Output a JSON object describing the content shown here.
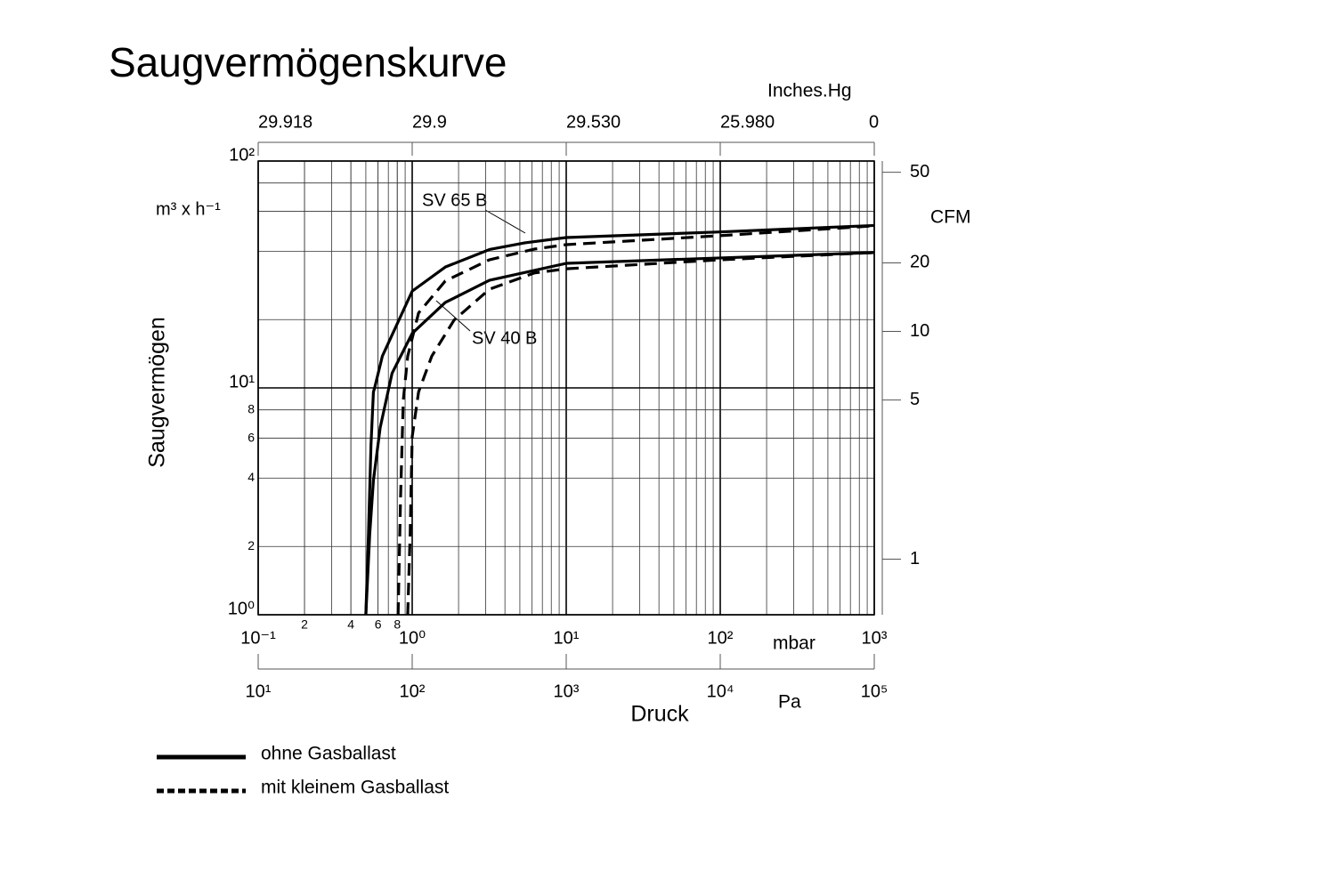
{
  "chart_data": {
    "type": "line",
    "title": "Saugvermögenskurve",
    "x_label": "Druck",
    "x_unit": "mbar",
    "y_label": "Saugvermögen",
    "y_unit": "m³ x h⁻¹",
    "xscale": "log",
    "yscale": "log",
    "xlim": [
      0.1,
      1000
    ],
    "ylim": [
      1,
      100
    ],
    "xticks": [
      {
        "value": 0.1,
        "label": "10⁻¹"
      },
      {
        "value": 0.2,
        "label": "2"
      },
      {
        "value": 0.4,
        "label": "4"
      },
      {
        "value": 0.6,
        "label": "6"
      },
      {
        "value": 0.8,
        "label": "8"
      },
      {
        "value": 1,
        "label": "10⁰"
      },
      {
        "value": 10,
        "label": "10¹"
      },
      {
        "value": 100,
        "label": "10²"
      },
      {
        "value": 1000,
        "label": "10³"
      }
    ],
    "yticks": [
      {
        "value": 1,
        "label": "10⁰"
      },
      2,
      4,
      6,
      8,
      {
        "value": 10,
        "label": "10¹"
      },
      {
        "value": 100,
        "label": "10²"
      }
    ],
    "y2_label": "CFM",
    "y2lim": [
      0.57,
      56
    ],
    "y2ticks": [
      1,
      5,
      10,
      20,
      50
    ],
    "x2_label": "Inches.Hg",
    "x2ticks": [
      29.918,
      29.9,
      {
        "value": 29.53,
        "label": "29.530"
      },
      {
        "value": 25.98,
        "label": "25.980"
      },
      0
    ],
    "x3_label": "Pa",
    "x3lim": [
      10,
      100000
    ],
    "x3ticks": [
      {
        "value": 10,
        "label": "10¹"
      },
      {
        "value": 100,
        "label": "10²"
      },
      {
        "value": 1000,
        "label": "10³"
      },
      {
        "value": 10000,
        "label": "10⁴"
      },
      {
        "value": 100000,
        "label": "10⁵"
      }
    ],
    "grid": true,
    "minor_grid": true,
    "color": "#000000",
    "annotations": [
      "SV 65 B",
      "SV 40 B"
    ],
    "legend": [
      {
        "label": "ohne Gasballast",
        "dashed": false
      },
      {
        "label": "mit kleinem Gasballast",
        "dashed": true
      }
    ],
    "series": [
      {
        "annotation": 0,
        "style": 0,
        "x": [
          0.5,
          0.52,
          0.54,
          0.56,
          0.57,
          0.64,
          1,
          1.64,
          3.2,
          5.4,
          10,
          100,
          1000
        ],
        "values": [
          1,
          2.27,
          5.6,
          9.6,
          10,
          13.8,
          26.7,
          34.1,
          40.8,
          43.6,
          46.0,
          48.7,
          52
        ]
      },
      {
        "annotation": 0,
        "style": 1,
        "x": [
          0.81,
          0.84,
          0.875,
          0.935,
          1.1,
          1.64,
          3.17,
          6.2,
          10,
          100,
          1000
        ],
        "values": [
          1,
          3.26,
          8.8,
          13.8,
          21.4,
          29.6,
          36.7,
          40.9,
          42.8,
          46.9,
          51.8
        ]
      },
      {
        "annotation": 1,
        "style": 0,
        "x": [
          0.5,
          0.53,
          0.56,
          0.62,
          0.74,
          1,
          1.64,
          3.17,
          10,
          100,
          1000
        ],
        "values": [
          1,
          2.27,
          3.91,
          6.7,
          11.6,
          17.4,
          23.8,
          29.8,
          35.4,
          37.4,
          39.5
        ]
      },
      {
        "annotation": 1,
        "style": 1,
        "x": [
          0.935,
          0.97,
          1.0,
          1.1,
          1.34,
          1.87,
          3.17,
          6.2,
          10,
          100,
          1000
        ],
        "values": [
          1,
          2.27,
          6.1,
          9.6,
          13.8,
          19.9,
          27.2,
          32.1,
          33.5,
          36.7,
          39.5
        ]
      }
    ]
  }
}
